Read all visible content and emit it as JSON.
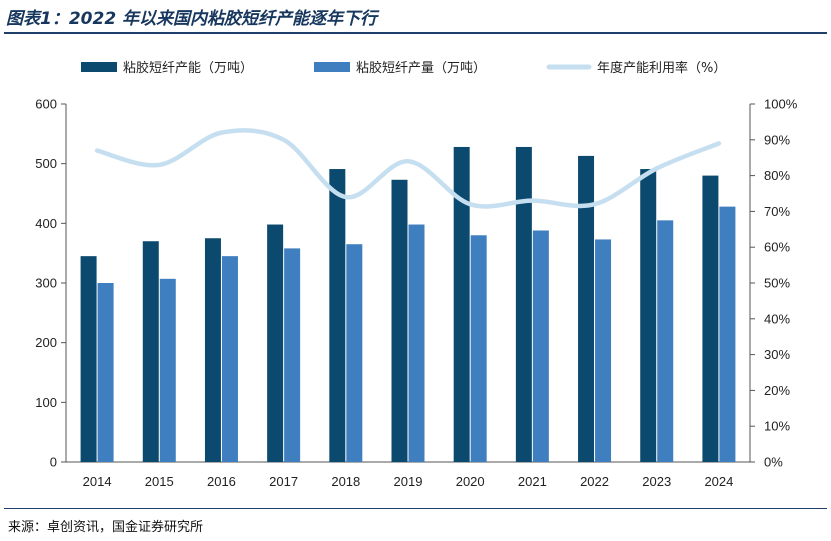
{
  "title": "图表1：2022 年以来国内粘胶短纤产能逐年下行",
  "source": "来源：卓创资讯，国金证券研究所",
  "colors": {
    "capacity": "#0b4a6e",
    "output": "#3f7fbf",
    "utilization": "#c6dff0",
    "axis": "#555555",
    "title": "#17375e"
  },
  "chart_data": {
    "type": "bar",
    "categories": [
      "2014",
      "2015",
      "2016",
      "2017",
      "2018",
      "2019",
      "2020",
      "2021",
      "2022",
      "2023",
      "2024"
    ],
    "series": [
      {
        "name": "粘胶短纤产能（万吨）",
        "kind": "bar",
        "axis": "left",
        "values": [
          345,
          370,
          375,
          398,
          491,
          473,
          528,
          528,
          513,
          491,
          480
        ]
      },
      {
        "name": "粘胶短纤产量（万吨）",
        "kind": "bar",
        "axis": "left",
        "values": [
          300,
          307,
          345,
          358,
          365,
          398,
          380,
          388,
          373,
          405,
          428
        ]
      },
      {
        "name": "年度产能利用率（%）",
        "kind": "line",
        "axis": "right",
        "smooth": true,
        "values": [
          87,
          83,
          92,
          90,
          74,
          84,
          72,
          73,
          72,
          82,
          89
        ]
      }
    ],
    "ylim_left": [
      0,
      600
    ],
    "yticks_left": [
      "0",
      "100",
      "200",
      "300",
      "400",
      "500",
      "600"
    ],
    "ylim_right": [
      0,
      100
    ],
    "yticks_right": [
      "0%",
      "10%",
      "20%",
      "30%",
      "40%",
      "50%",
      "60%",
      "70%",
      "80%",
      "90%",
      "100%"
    ],
    "grid": false,
    "legend": "top"
  }
}
